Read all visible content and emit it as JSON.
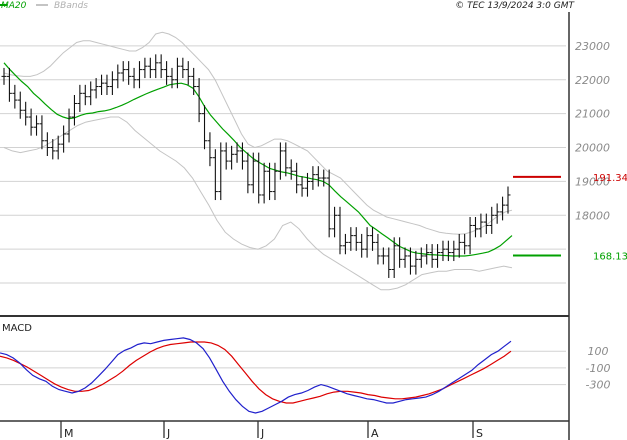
{
  "chart_data": {
    "type": "line",
    "header": {
      "legend": [
        {
          "name": "MA20",
          "color": "#00a000"
        },
        {
          "name": "BBands",
          "color": "#b0b0b0"
        }
      ],
      "source": "© TEC 13/9/2024 3:0 GMT"
    },
    "price_axis": {
      "ylim": [
        15500,
        24000
      ],
      "ticks": [
        16000,
        17000,
        18000,
        19000,
        20000,
        21000,
        22000,
        23000
      ],
      "tick_labels": [
        "",
        "",
        "18000",
        "19000",
        "20000",
        "21000",
        "22000",
        "23000"
      ]
    },
    "months": [
      "M",
      "J",
      "J",
      "A",
      "S"
    ],
    "levels": [
      {
        "label": "191.34",
        "value": 19134,
        "color": "#cc0000"
      },
      {
        "label": "168.13",
        "value": 16813,
        "color": "#00a000"
      }
    ],
    "price_series": {
      "name": "Price",
      "close": [
        22100,
        21600,
        21400,
        21100,
        20900,
        20600,
        20700,
        20200,
        20000,
        19900,
        20100,
        20400,
        20900,
        21300,
        21600,
        21500,
        21700,
        21800,
        21900,
        21800,
        22000,
        22200,
        22300,
        22100,
        22000,
        22300,
        22400,
        22300,
        22500,
        22300,
        22100,
        22000,
        22400,
        22300,
        22100,
        21800,
        21000,
        20200,
        19700,
        18700,
        19900,
        19600,
        19800,
        19900,
        19600,
        18900,
        19600,
        18600,
        19300,
        18700,
        19300,
        19900,
        19400,
        19300,
        18900,
        18800,
        19000,
        19200,
        19100,
        19100,
        17600,
        18000,
        17100,
        17200,
        17400,
        17200,
        17000,
        17400,
        17200,
        16800,
        16800,
        16400,
        17100,
        16700,
        16800,
        16500,
        16700,
        16800,
        16900,
        16700,
        16900,
        17000,
        16900,
        17000,
        17200,
        17100,
        17700,
        17600,
        17800,
        17700,
        18000,
        18100,
        18300,
        18600
      ],
      "ma20": [
        22500,
        22300,
        22120,
        21950,
        21800,
        21600,
        21450,
        21280,
        21120,
        20980,
        20900,
        20850,
        20880,
        20950,
        21000,
        21020,
        21060,
        21080,
        21120,
        21180,
        21250,
        21330,
        21420,
        21500,
        21580,
        21650,
        21720,
        21780,
        21850,
        21880,
        21900,
        21850,
        21750,
        21500,
        21200,
        20950,
        20750,
        20550,
        20380,
        20200,
        20000,
        19850,
        19700,
        19580,
        19480,
        19380,
        19330,
        19280,
        19250,
        19200,
        19150,
        19120,
        19080,
        19050,
        19000,
        18900,
        18720,
        18550,
        18400,
        18250,
        18100,
        17900,
        17700,
        17580,
        17450,
        17330,
        17200,
        17080,
        17000,
        16920,
        16880,
        16860,
        16840,
        16830,
        16820,
        16810,
        16800,
        16800,
        16800,
        16820,
        16850,
        16880,
        16920,
        17000,
        17100,
        17250,
        17400
      ],
      "bb_upper": [
        22200,
        22150,
        22120,
        22100,
        22100,
        22150,
        22250,
        22400,
        22600,
        22800,
        22950,
        23100,
        23150,
        23150,
        23100,
        23050,
        23000,
        22950,
        22900,
        22850,
        22850,
        22950,
        23100,
        23350,
        23400,
        23350,
        23250,
        23100,
        22900,
        22700,
        22500,
        22300,
        22000,
        21600,
        21200,
        20800,
        20400,
        20100,
        20000,
        20050,
        20150,
        20250,
        20250,
        20200,
        20100,
        20000,
        19900,
        19700,
        19500,
        19300,
        19200,
        19100,
        18900,
        18700,
        18500,
        18300,
        18150,
        18050,
        17950,
        17900,
        17850,
        17800,
        17750,
        17700,
        17620,
        17560,
        17500,
        17470,
        17450,
        17440,
        17460,
        17520,
        17600,
        17700,
        17850,
        18000,
        18100,
        18150
      ],
      "bb_lower": [
        20000,
        19900,
        19850,
        19900,
        19950,
        20050,
        20200,
        20350,
        20500,
        20650,
        20750,
        20800,
        20850,
        20900,
        20900,
        20750,
        20500,
        20300,
        20100,
        19900,
        19750,
        19600,
        19400,
        19100,
        18700,
        18300,
        17850,
        17500,
        17300,
        17150,
        17050,
        17000,
        17100,
        17300,
        17700,
        17800,
        17600,
        17300,
        17050,
        16850,
        16700,
        16550,
        16400,
        16250,
        16100,
        15950,
        15800,
        15800,
        15850,
        15950,
        16100,
        16250,
        16300,
        16350,
        16350,
        16400,
        16400,
        16400,
        16350,
        16400,
        16450,
        16500,
        16450
      ]
    },
    "macd_panel": {
      "title": "MACD",
      "ylim": [
        -700,
        450
      ],
      "ticks": [
        100,
        -100,
        -300
      ],
      "tick_labels": [
        "100",
        "-100",
        "-300"
      ],
      "macd": [
        80,
        60,
        20,
        -40,
        -120,
        -190,
        -230,
        -260,
        -320,
        -360,
        -380,
        -400,
        -380,
        -340,
        -280,
        -200,
        -120,
        -30,
        60,
        110,
        140,
        180,
        200,
        190,
        210,
        230,
        240,
        250,
        260,
        240,
        200,
        130,
        20,
        -120,
        -260,
        -380,
        -480,
        -560,
        -620,
        -640,
        -620,
        -580,
        -540,
        -500,
        -450,
        -420,
        -400,
        -370,
        -330,
        -300,
        -320,
        -350,
        -380,
        -410,
        -430,
        -450,
        -470,
        -480,
        -500,
        -520,
        -520,
        -500,
        -480,
        -470,
        -460,
        -450,
        -420,
        -380,
        -330,
        -280,
        -230,
        -180,
        -130,
        -60,
        0,
        60,
        100,
        160,
        220
      ],
      "signal": [
        40,
        20,
        -10,
        -50,
        -90,
        -140,
        -190,
        -240,
        -290,
        -330,
        -360,
        -380,
        -380,
        -370,
        -340,
        -300,
        -250,
        -200,
        -140,
        -70,
        -10,
        40,
        90,
        130,
        160,
        180,
        190,
        200,
        210,
        210,
        210,
        200,
        170,
        120,
        40,
        -60,
        -160,
        -260,
        -350,
        -420,
        -470,
        -500,
        -520,
        -520,
        -500,
        -480,
        -460,
        -440,
        -410,
        -390,
        -380,
        -380,
        -390,
        -400,
        -420,
        -430,
        -450,
        -460,
        -470,
        -470,
        -460,
        -450,
        -430,
        -410,
        -380,
        -350,
        -310,
        -270,
        -230,
        -190,
        -150,
        -110,
        -60,
        -10,
        40,
        100
      ]
    }
  }
}
